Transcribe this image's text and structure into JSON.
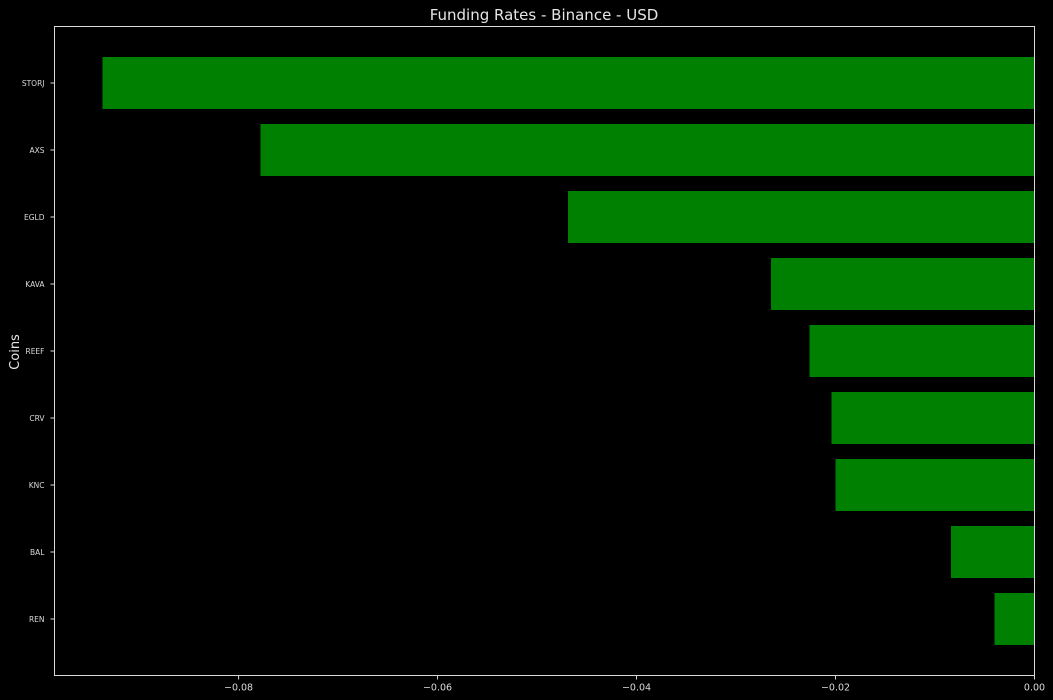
{
  "chart_data": {
    "type": "bar",
    "orientation": "horizontal",
    "title": "Funding Rates - Binance - USD",
    "xlabel": "",
    "ylabel": "Coins",
    "categories": [
      "STORJ",
      "AXS",
      "EGLD",
      "KAVA",
      "REEF",
      "CRV",
      "KNC",
      "BAL",
      "REN"
    ],
    "values": [
      -0.0937,
      -0.0778,
      -0.0469,
      -0.0265,
      -0.0226,
      -0.0204,
      -0.02,
      -0.0084,
      -0.004
    ],
    "xlim": [
      -0.0985,
      0.0
    ],
    "xticks": [
      -0.08,
      -0.06,
      -0.04,
      -0.02,
      0.0
    ],
    "xtick_labels": [
      "−0.08",
      "−0.06",
      "−0.04",
      "−0.02",
      "0.00"
    ],
    "bar_color": "#008000",
    "background_color": "#000000",
    "grid": false,
    "legend": "none"
  }
}
